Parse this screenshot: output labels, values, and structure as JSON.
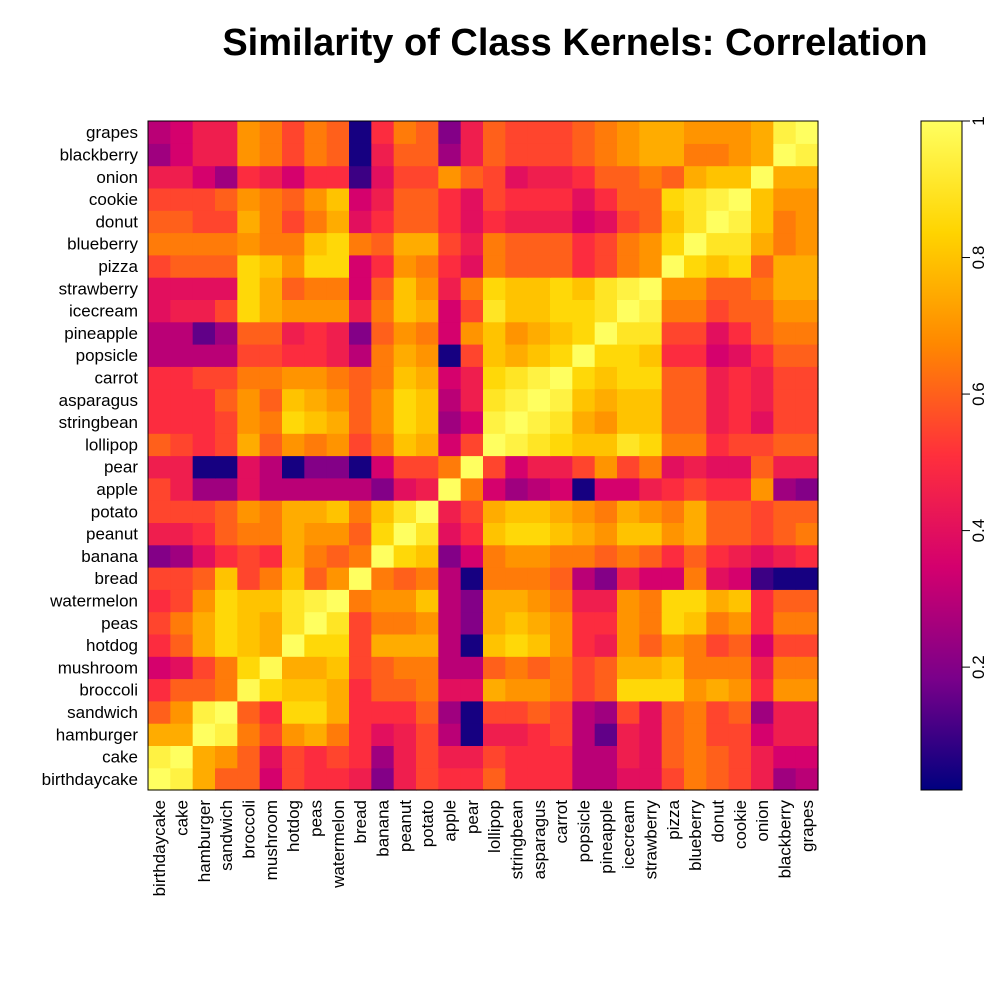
{
  "chart_data": {
    "type": "heatmap",
    "title": "Similarity of Class Kernels: Correlation",
    "x_categories": [
      "birthdaycake",
      "cake",
      "hamburger",
      "sandwich",
      "broccoli",
      "mushroom",
      "hotdog",
      "peas",
      "watermelon",
      "bread",
      "banana",
      "peanut",
      "potato",
      "apple",
      "pear",
      "lollipop",
      "stringbean",
      "asparagus",
      "carrot",
      "popsicle",
      "pineapple",
      "icecream",
      "strawberry",
      "pizza",
      "blueberry",
      "donut",
      "cookie",
      "onion",
      "blackberry",
      "grapes"
    ],
    "y_categories": [
      "grapes",
      "blackberry",
      "onion",
      "cookie",
      "donut",
      "blueberry",
      "pizza",
      "strawberry",
      "icecream",
      "pineapple",
      "popsicle",
      "carrot",
      "asparagus",
      "stringbean",
      "lollipop",
      "pear",
      "apple",
      "potato",
      "peanut",
      "banana",
      "bread",
      "watermelon",
      "peas",
      "hotdog",
      "mushroom",
      "broccoli",
      "sandwich",
      "hamburger",
      "cake",
      "birthdaycake"
    ],
    "values": [
      [
        1.0,
        0.95,
        0.75,
        0.6,
        0.6,
        0.35,
        0.55,
        0.5,
        0.5,
        0.45,
        0.2,
        0.45,
        0.55,
        0.5,
        0.5,
        0.6,
        0.5,
        0.5,
        0.5,
        0.3,
        0.3,
        0.4,
        0.4,
        0.55,
        0.65,
        0.6,
        0.55,
        0.45,
        0.25,
        0.3
      ],
      [
        0.95,
        1.0,
        0.75,
        0.7,
        0.6,
        0.4,
        0.55,
        0.5,
        0.55,
        0.5,
        0.25,
        0.45,
        0.55,
        0.45,
        0.45,
        0.55,
        0.5,
        0.5,
        0.5,
        0.3,
        0.3,
        0.45,
        0.4,
        0.6,
        0.65,
        0.6,
        0.55,
        0.45,
        0.35,
        0.35
      ],
      [
        0.75,
        0.75,
        1.0,
        0.95,
        0.65,
        0.55,
        0.7,
        0.75,
        0.65,
        0.5,
        0.4,
        0.45,
        0.55,
        0.3,
        0.05,
        0.45,
        0.45,
        0.5,
        0.55,
        0.3,
        0.15,
        0.45,
        0.4,
        0.6,
        0.65,
        0.55,
        0.55,
        0.35,
        0.45,
        0.45
      ],
      [
        0.6,
        0.7,
        0.95,
        1.0,
        0.6,
        0.5,
        0.85,
        0.85,
        0.75,
        0.5,
        0.5,
        0.5,
        0.6,
        0.25,
        0.05,
        0.55,
        0.55,
        0.6,
        0.55,
        0.3,
        0.25,
        0.55,
        0.4,
        0.6,
        0.65,
        0.55,
        0.6,
        0.25,
        0.45,
        0.45
      ],
      [
        0.5,
        0.6,
        0.6,
        0.65,
        0.98,
        0.85,
        0.8,
        0.8,
        0.75,
        0.5,
        0.6,
        0.6,
        0.65,
        0.4,
        0.4,
        0.75,
        0.7,
        0.7,
        0.65,
        0.55,
        0.6,
        0.85,
        0.85,
        0.85,
        0.7,
        0.75,
        0.7,
        0.5,
        0.7,
        0.7
      ],
      [
        0.35,
        0.4,
        0.55,
        0.65,
        0.85,
        0.98,
        0.75,
        0.75,
        0.8,
        0.55,
        0.6,
        0.65,
        0.65,
        0.3,
        0.3,
        0.6,
        0.65,
        0.6,
        0.65,
        0.55,
        0.6,
        0.75,
        0.75,
        0.8,
        0.65,
        0.65,
        0.65,
        0.45,
        0.65,
        0.65
      ],
      [
        0.5,
        0.6,
        0.75,
        0.85,
        0.8,
        0.75,
        1.0,
        0.85,
        0.85,
        0.55,
        0.75,
        0.75,
        0.75,
        0.3,
        0.05,
        0.8,
        0.85,
        0.8,
        0.7,
        0.5,
        0.45,
        0.7,
        0.6,
        0.7,
        0.65,
        0.55,
        0.6,
        0.35,
        0.55,
        0.55
      ],
      [
        0.55,
        0.65,
        0.75,
        0.85,
        0.8,
        0.75,
        0.9,
        1.0,
        0.9,
        0.55,
        0.65,
        0.65,
        0.7,
        0.3,
        0.2,
        0.75,
        0.8,
        0.75,
        0.7,
        0.5,
        0.5,
        0.7,
        0.65,
        0.85,
        0.8,
        0.65,
        0.7,
        0.5,
        0.65,
        0.65
      ],
      [
        0.5,
        0.55,
        0.7,
        0.85,
        0.8,
        0.8,
        0.9,
        0.95,
        1.0,
        0.65,
        0.7,
        0.7,
        0.8,
        0.3,
        0.2,
        0.75,
        0.75,
        0.7,
        0.65,
        0.45,
        0.45,
        0.7,
        0.65,
        0.85,
        0.85,
        0.75,
        0.8,
        0.5,
        0.6,
        0.6
      ],
      [
        0.55,
        0.55,
        0.6,
        0.8,
        0.55,
        0.65,
        0.8,
        0.6,
        0.7,
        1.0,
        0.65,
        0.6,
        0.65,
        0.3,
        0.05,
        0.65,
        0.65,
        0.65,
        0.6,
        0.3,
        0.2,
        0.45,
        0.35,
        0.35,
        0.65,
        0.4,
        0.35,
        0.1,
        0.05,
        0.05
      ],
      [
        0.2,
        0.25,
        0.4,
        0.5,
        0.55,
        0.5,
        0.75,
        0.65,
        0.6,
        0.65,
        1.0,
        0.85,
        0.8,
        0.2,
        0.35,
        0.65,
        0.7,
        0.7,
        0.65,
        0.65,
        0.6,
        0.65,
        0.6,
        0.5,
        0.6,
        0.5,
        0.45,
        0.4,
        0.45,
        0.5
      ],
      [
        0.45,
        0.45,
        0.5,
        0.6,
        0.65,
        0.65,
        0.75,
        0.7,
        0.7,
        0.6,
        0.85,
        1.0,
        0.9,
        0.4,
        0.5,
        0.8,
        0.85,
        0.85,
        0.8,
        0.75,
        0.7,
        0.8,
        0.8,
        0.7,
        0.75,
        0.6,
        0.6,
        0.55,
        0.6,
        0.65
      ],
      [
        0.55,
        0.55,
        0.55,
        0.6,
        0.7,
        0.65,
        0.75,
        0.75,
        0.8,
        0.65,
        0.8,
        0.9,
        1.0,
        0.45,
        0.55,
        0.75,
        0.8,
        0.8,
        0.75,
        0.7,
        0.65,
        0.75,
        0.7,
        0.65,
        0.75,
        0.6,
        0.6,
        0.55,
        0.6,
        0.6
      ],
      [
        0.55,
        0.45,
        0.25,
        0.25,
        0.4,
        0.3,
        0.3,
        0.3,
        0.3,
        0.3,
        0.2,
        0.4,
        0.45,
        1.0,
        0.65,
        0.35,
        0.25,
        0.3,
        0.35,
        0.05,
        0.35,
        0.35,
        0.45,
        0.5,
        0.55,
        0.5,
        0.5,
        0.7,
        0.25,
        0.2
      ],
      [
        0.45,
        0.45,
        0.05,
        0.05,
        0.4,
        0.3,
        0.05,
        0.2,
        0.2,
        0.05,
        0.35,
        0.55,
        0.55,
        0.65,
        1.0,
        0.55,
        0.35,
        0.45,
        0.45,
        0.55,
        0.7,
        0.55,
        0.65,
        0.4,
        0.45,
        0.4,
        0.4,
        0.6,
        0.45,
        0.45
      ],
      [
        0.6,
        0.55,
        0.5,
        0.55,
        0.75,
        0.6,
        0.7,
        0.65,
        0.7,
        0.55,
        0.65,
        0.8,
        0.75,
        0.35,
        0.55,
        1.0,
        0.95,
        0.9,
        0.85,
        0.8,
        0.8,
        0.9,
        0.85,
        0.65,
        0.65,
        0.5,
        0.55,
        0.55,
        0.6,
        0.6
      ],
      [
        0.5,
        0.5,
        0.5,
        0.55,
        0.7,
        0.65,
        0.85,
        0.8,
        0.75,
        0.6,
        0.7,
        0.85,
        0.8,
        0.25,
        0.35,
        0.95,
        1.0,
        0.95,
        0.9,
        0.75,
        0.7,
        0.8,
        0.8,
        0.6,
        0.6,
        0.45,
        0.5,
        0.4,
        0.55,
        0.55
      ],
      [
        0.5,
        0.5,
        0.5,
        0.6,
        0.7,
        0.6,
        0.8,
        0.75,
        0.7,
        0.6,
        0.7,
        0.85,
        0.8,
        0.3,
        0.45,
        0.9,
        0.95,
        1.0,
        0.95,
        0.8,
        0.75,
        0.8,
        0.8,
        0.6,
        0.6,
        0.45,
        0.5,
        0.45,
        0.55,
        0.55
      ],
      [
        0.5,
        0.5,
        0.55,
        0.55,
        0.65,
        0.65,
        0.7,
        0.7,
        0.65,
        0.6,
        0.65,
        0.8,
        0.75,
        0.35,
        0.45,
        0.85,
        0.9,
        0.95,
        1.0,
        0.85,
        0.8,
        0.85,
        0.85,
        0.6,
        0.6,
        0.45,
        0.5,
        0.45,
        0.55,
        0.55
      ],
      [
        0.3,
        0.3,
        0.3,
        0.3,
        0.55,
        0.55,
        0.5,
        0.5,
        0.45,
        0.3,
        0.65,
        0.75,
        0.7,
        0.05,
        0.55,
        0.8,
        0.75,
        0.8,
        0.85,
        1.0,
        0.85,
        0.85,
        0.8,
        0.5,
        0.5,
        0.35,
        0.4,
        0.5,
        0.6,
        0.6
      ],
      [
        0.3,
        0.3,
        0.15,
        0.25,
        0.6,
        0.6,
        0.45,
        0.5,
        0.45,
        0.2,
        0.6,
        0.7,
        0.65,
        0.35,
        0.7,
        0.8,
        0.7,
        0.75,
        0.8,
        0.85,
        1.0,
        0.9,
        0.9,
        0.55,
        0.55,
        0.4,
        0.5,
        0.6,
        0.65,
        0.65
      ],
      [
        0.4,
        0.45,
        0.45,
        0.55,
        0.85,
        0.75,
        0.7,
        0.7,
        0.7,
        0.45,
        0.65,
        0.8,
        0.75,
        0.35,
        0.55,
        0.9,
        0.8,
        0.8,
        0.85,
        0.85,
        0.9,
        1.0,
        0.95,
        0.65,
        0.65,
        0.55,
        0.6,
        0.6,
        0.7,
        0.7
      ],
      [
        0.4,
        0.4,
        0.4,
        0.4,
        0.85,
        0.75,
        0.6,
        0.65,
        0.65,
        0.35,
        0.6,
        0.8,
        0.7,
        0.45,
        0.65,
        0.85,
        0.8,
        0.8,
        0.85,
        0.8,
        0.9,
        0.95,
        1.0,
        0.7,
        0.7,
        0.6,
        0.6,
        0.65,
        0.75,
        0.75
      ],
      [
        0.55,
        0.6,
        0.6,
        0.6,
        0.85,
        0.8,
        0.7,
        0.85,
        0.85,
        0.35,
        0.5,
        0.7,
        0.65,
        0.5,
        0.4,
        0.65,
        0.6,
        0.6,
        0.6,
        0.5,
        0.55,
        0.65,
        0.7,
        1.0,
        0.85,
        0.8,
        0.85,
        0.6,
        0.75,
        0.75
      ],
      [
        0.65,
        0.65,
        0.65,
        0.65,
        0.7,
        0.65,
        0.65,
        0.8,
        0.85,
        0.65,
        0.6,
        0.75,
        0.75,
        0.55,
        0.45,
        0.65,
        0.6,
        0.6,
        0.6,
        0.5,
        0.55,
        0.65,
        0.7,
        0.85,
        1.0,
        0.9,
        0.9,
        0.75,
        0.65,
        0.7
      ],
      [
        0.6,
        0.6,
        0.55,
        0.55,
        0.75,
        0.65,
        0.55,
        0.65,
        0.75,
        0.4,
        0.5,
        0.6,
        0.6,
        0.5,
        0.4,
        0.5,
        0.45,
        0.45,
        0.45,
        0.35,
        0.4,
        0.55,
        0.6,
        0.8,
        0.9,
        1.0,
        0.95,
        0.8,
        0.65,
        0.7
      ],
      [
        0.55,
        0.55,
        0.55,
        0.6,
        0.7,
        0.65,
        0.6,
        0.7,
        0.8,
        0.35,
        0.45,
        0.6,
        0.6,
        0.5,
        0.4,
        0.55,
        0.5,
        0.5,
        0.5,
        0.4,
        0.5,
        0.6,
        0.6,
        0.85,
        0.9,
        0.95,
        1.0,
        0.8,
        0.7,
        0.7
      ],
      [
        0.45,
        0.45,
        0.35,
        0.25,
        0.5,
        0.45,
        0.35,
        0.5,
        0.5,
        0.1,
        0.4,
        0.55,
        0.55,
        0.7,
        0.6,
        0.55,
        0.4,
        0.45,
        0.45,
        0.5,
        0.6,
        0.6,
        0.65,
        0.6,
        0.75,
        0.8,
        0.8,
        1.0,
        0.75,
        0.75
      ],
      [
        0.25,
        0.35,
        0.45,
        0.45,
        0.7,
        0.65,
        0.55,
        0.65,
        0.6,
        0.05,
        0.45,
        0.6,
        0.6,
        0.25,
        0.45,
        0.6,
        0.55,
        0.55,
        0.55,
        0.6,
        0.65,
        0.7,
        0.75,
        0.75,
        0.65,
        0.65,
        0.7,
        0.75,
        1.0,
        0.95
      ],
      [
        0.3,
        0.35,
        0.45,
        0.45,
        0.7,
        0.65,
        0.55,
        0.65,
        0.6,
        0.05,
        0.5,
        0.65,
        0.6,
        0.2,
        0.45,
        0.6,
        0.55,
        0.55,
        0.55,
        0.6,
        0.65,
        0.7,
        0.75,
        0.75,
        0.7,
        0.7,
        0.7,
        0.75,
        0.95,
        1.0
      ]
    ],
    "colorbar": {
      "ticks": [
        0.2,
        0.4,
        0.6,
        0.8,
        1
      ],
      "tick_labels": [
        "0.2",
        "0.4",
        "0.6",
        "0.8",
        "1"
      ],
      "range": [
        0.02,
        1
      ]
    },
    "colormap": [
      "#00007f",
      "#7a008a",
      "#d4006e",
      "#ff2f3c",
      "#ff8800",
      "#ffd400",
      "#ffff60"
    ],
    "grid": false,
    "legend": "right colorbar"
  }
}
